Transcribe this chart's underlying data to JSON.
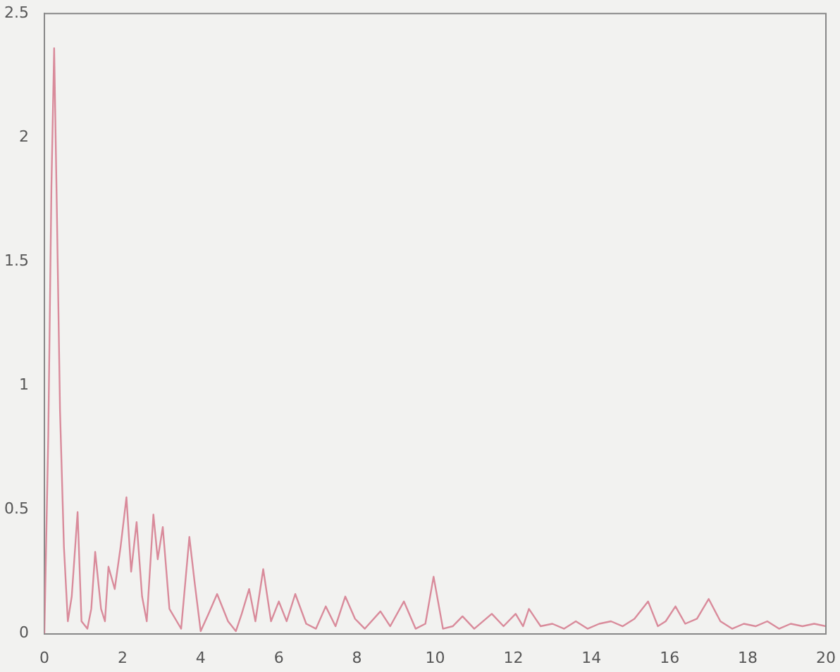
{
  "chart_data": {
    "type": "line",
    "color": "#d98b9b",
    "marker": "none",
    "line_style": "solid",
    "grid": false,
    "legend": false,
    "x": [
      0,
      0.1,
      0.18,
      0.25,
      0.32,
      0.4,
      0.5,
      0.6,
      0.7,
      0.85,
      0.95,
      1.1,
      1.2,
      1.3,
      1.45,
      1.55,
      1.64,
      1.8,
      1.95,
      2.1,
      2.22,
      2.36,
      2.5,
      2.62,
      2.79,
      2.9,
      3.03,
      3.2,
      3.5,
      3.71,
      3.85,
      4.0,
      4.2,
      4.42,
      4.7,
      4.9,
      5.05,
      5.24,
      5.4,
      5.6,
      5.8,
      6.0,
      6.2,
      6.42,
      6.7,
      6.95,
      7.2,
      7.45,
      7.7,
      7.95,
      8.2,
      8.6,
      8.85,
      9.2,
      9.5,
      9.75,
      9.96,
      10.2,
      10.45,
      10.7,
      11.0,
      11.45,
      11.75,
      12.06,
      12.25,
      12.4,
      12.7,
      13.0,
      13.3,
      13.6,
      13.9,
      14.2,
      14.5,
      14.8,
      15.1,
      15.45,
      15.7,
      15.9,
      16.15,
      16.4,
      16.7,
      17.0,
      17.3,
      17.6,
      17.9,
      18.2,
      18.5,
      18.8,
      19.1,
      19.4,
      19.7,
      20
    ],
    "values": [
      0,
      0.8,
      1.8,
      2.36,
      1.7,
      0.9,
      0.35,
      0.05,
      0.15,
      0.49,
      0.05,
      0.02,
      0.1,
      0.33,
      0.1,
      0.05,
      0.27,
      0.18,
      0.35,
      0.55,
      0.25,
      0.45,
      0.15,
      0.05,
      0.48,
      0.3,
      0.43,
      0.1,
      0.02,
      0.39,
      0.2,
      0.01,
      0.08,
      0.16,
      0.05,
      0.01,
      0.08,
      0.18,
      0.05,
      0.26,
      0.05,
      0.13,
      0.05,
      0.16,
      0.04,
      0.02,
      0.11,
      0.03,
      0.15,
      0.06,
      0.02,
      0.09,
      0.03,
      0.13,
      0.02,
      0.04,
      0.23,
      0.02,
      0.03,
      0.07,
      0.02,
      0.08,
      0.03,
      0.08,
      0.03,
      0.1,
      0.03,
      0.04,
      0.02,
      0.05,
      0.02,
      0.04,
      0.05,
      0.03,
      0.06,
      0.13,
      0.03,
      0.05,
      0.11,
      0.04,
      0.06,
      0.14,
      0.05,
      0.02,
      0.04,
      0.03,
      0.05,
      0.02,
      0.04,
      0.03,
      0.04,
      0.03
    ],
    "xlim": [
      0,
      20
    ],
    "xticks": [
      0,
      2,
      4,
      6,
      8,
      10,
      12,
      14,
      16,
      18,
      20
    ],
    "ylim": [
      0,
      2.5
    ],
    "yticks": [
      0,
      0.5,
      1,
      1.5,
      2,
      2.5
    ]
  }
}
